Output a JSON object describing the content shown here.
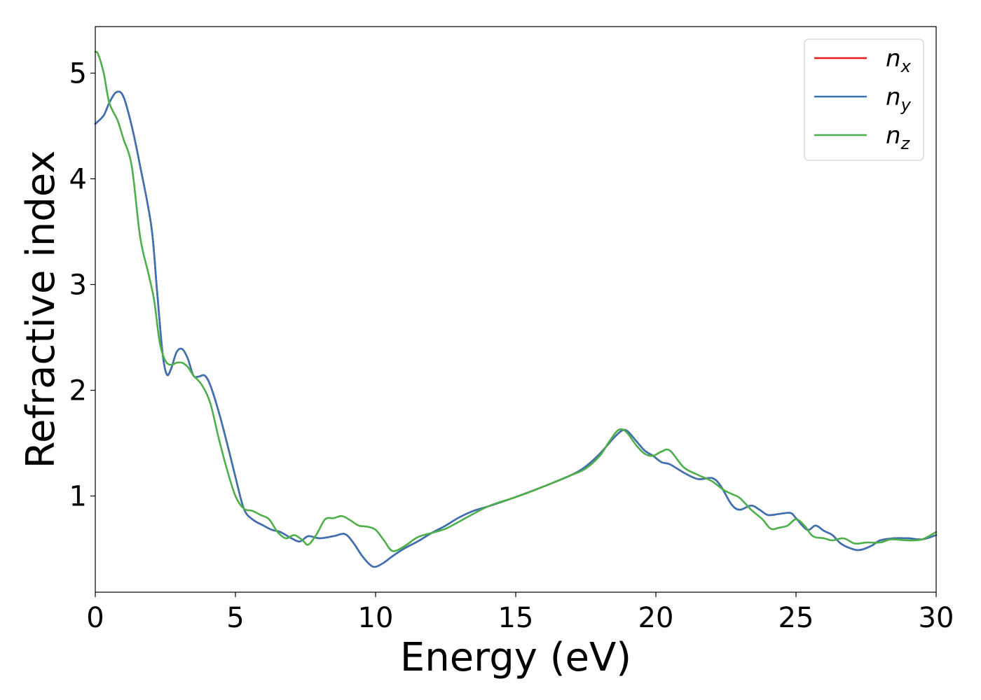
{
  "chart_data": {
    "type": "line",
    "title": "",
    "xlabel": "Energy (eV)",
    "ylabel": "Refractive index",
    "xlim": [
      0,
      30
    ],
    "ylim": [
      0.09,
      5.44
    ],
    "xticks": [
      0,
      5,
      10,
      15,
      20,
      25,
      30
    ],
    "yticks": [
      1,
      2,
      3,
      4,
      5
    ],
    "grid": false,
    "legend_position": "top-right",
    "series": [
      {
        "name": "n_x",
        "label_base": "n",
        "label_sub": "x",
        "color": "#e41a1c",
        "x": [
          0,
          0.3,
          0.5,
          0.75,
          1.0,
          1.3,
          1.6,
          2.0,
          2.2,
          2.4,
          2.55,
          2.7,
          2.9,
          3.1,
          3.3,
          3.5,
          3.7,
          3.9,
          4.1,
          4.4,
          4.7,
          5.0,
          5.3,
          5.6,
          6.0,
          6.3,
          6.6,
          7.0,
          7.3,
          7.6,
          8.0,
          8.5,
          8.9,
          9.2,
          9.5,
          9.8,
          10.0,
          10.3,
          10.6,
          11.0,
          11.5,
          12.0,
          12.5,
          13.0,
          13.5,
          14.0,
          15.0,
          16.0,
          17.0,
          17.5,
          18.0,
          18.5,
          18.8,
          19.0,
          19.3,
          19.6,
          19.9,
          20.2,
          20.5,
          21.0,
          21.5,
          22.0,
          22.3,
          22.7,
          23.0,
          23.4,
          23.7,
          24.0,
          24.4,
          24.8,
          25.0,
          25.4,
          25.7,
          26.0,
          26.3,
          26.6,
          27.0,
          27.3,
          27.7,
          28.0,
          28.5,
          29.0,
          29.5,
          30.0
        ],
        "y": [
          4.52,
          4.6,
          4.72,
          4.82,
          4.78,
          4.5,
          4.12,
          3.55,
          2.95,
          2.35,
          2.15,
          2.2,
          2.36,
          2.39,
          2.3,
          2.14,
          2.13,
          2.14,
          2.05,
          1.8,
          1.5,
          1.18,
          0.88,
          0.78,
          0.72,
          0.68,
          0.66,
          0.6,
          0.57,
          0.62,
          0.6,
          0.62,
          0.64,
          0.56,
          0.44,
          0.35,
          0.33,
          0.37,
          0.43,
          0.5,
          0.57,
          0.65,
          0.72,
          0.8,
          0.86,
          0.9,
          0.99,
          1.09,
          1.2,
          1.28,
          1.4,
          1.55,
          1.62,
          1.61,
          1.52,
          1.43,
          1.38,
          1.32,
          1.3,
          1.22,
          1.16,
          1.17,
          1.1,
          0.92,
          0.87,
          0.91,
          0.87,
          0.82,
          0.83,
          0.84,
          0.79,
          0.68,
          0.72,
          0.67,
          0.63,
          0.55,
          0.5,
          0.49,
          0.53,
          0.58,
          0.6,
          0.6,
          0.59,
          0.63
        ]
      },
      {
        "name": "n_y",
        "label_base": "n",
        "label_sub": "y",
        "color": "#3a73b4",
        "x": [
          0,
          0.3,
          0.5,
          0.75,
          1.0,
          1.3,
          1.6,
          2.0,
          2.2,
          2.4,
          2.55,
          2.7,
          2.9,
          3.1,
          3.3,
          3.5,
          3.7,
          3.9,
          4.1,
          4.4,
          4.7,
          5.0,
          5.3,
          5.6,
          6.0,
          6.3,
          6.6,
          7.0,
          7.3,
          7.6,
          8.0,
          8.5,
          8.9,
          9.2,
          9.5,
          9.8,
          10.0,
          10.3,
          10.6,
          11.0,
          11.5,
          12.0,
          12.5,
          13.0,
          13.5,
          14.0,
          15.0,
          16.0,
          17.0,
          17.5,
          18.0,
          18.5,
          18.8,
          19.0,
          19.3,
          19.6,
          19.9,
          20.2,
          20.5,
          21.0,
          21.5,
          22.0,
          22.3,
          22.7,
          23.0,
          23.4,
          23.7,
          24.0,
          24.4,
          24.8,
          25.0,
          25.4,
          25.7,
          26.0,
          26.3,
          26.6,
          27.0,
          27.3,
          27.7,
          28.0,
          28.5,
          29.0,
          29.5,
          30.0
        ],
        "y": [
          4.52,
          4.6,
          4.72,
          4.82,
          4.78,
          4.5,
          4.12,
          3.55,
          2.95,
          2.35,
          2.15,
          2.2,
          2.36,
          2.39,
          2.3,
          2.14,
          2.13,
          2.14,
          2.05,
          1.8,
          1.5,
          1.18,
          0.88,
          0.78,
          0.72,
          0.68,
          0.66,
          0.6,
          0.57,
          0.62,
          0.6,
          0.62,
          0.64,
          0.56,
          0.44,
          0.35,
          0.33,
          0.37,
          0.43,
          0.5,
          0.57,
          0.65,
          0.72,
          0.8,
          0.86,
          0.9,
          0.99,
          1.09,
          1.2,
          1.28,
          1.4,
          1.55,
          1.62,
          1.61,
          1.52,
          1.43,
          1.38,
          1.32,
          1.3,
          1.22,
          1.16,
          1.17,
          1.1,
          0.92,
          0.87,
          0.91,
          0.87,
          0.82,
          0.83,
          0.84,
          0.79,
          0.68,
          0.72,
          0.67,
          0.63,
          0.55,
          0.5,
          0.49,
          0.53,
          0.58,
          0.6,
          0.6,
          0.59,
          0.63
        ]
      },
      {
        "name": "n_z",
        "label_base": "n",
        "label_sub": "z",
        "color": "#4daf4a",
        "x": [
          0,
          0.1,
          0.3,
          0.5,
          0.8,
          1.0,
          1.3,
          1.6,
          1.9,
          2.1,
          2.3,
          2.5,
          2.7,
          2.9,
          3.1,
          3.3,
          3.5,
          3.8,
          4.1,
          4.4,
          4.7,
          5.0,
          5.3,
          5.6,
          5.9,
          6.2,
          6.5,
          6.8,
          7.1,
          7.4,
          7.6,
          7.9,
          8.2,
          8.5,
          8.8,
          9.1,
          9.4,
          9.7,
          10.0,
          10.3,
          10.6,
          11.0,
          11.5,
          12.0,
          12.5,
          13.0,
          14.0,
          15.0,
          16.0,
          17.0,
          17.5,
          18.0,
          18.3,
          18.6,
          18.8,
          19.0,
          19.3,
          19.6,
          19.9,
          20.2,
          20.5,
          21.0,
          21.5,
          22.0,
          22.4,
          22.7,
          23.0,
          23.4,
          23.8,
          24.1,
          24.4,
          24.7,
          25.0,
          25.3,
          25.6,
          26.0,
          26.3,
          26.7,
          27.1,
          27.5,
          28.0,
          28.4,
          29.0,
          29.5,
          30.0
        ],
        "y": [
          5.2,
          5.18,
          5.0,
          4.72,
          4.55,
          4.38,
          4.12,
          3.45,
          3.1,
          2.85,
          2.45,
          2.28,
          2.24,
          2.26,
          2.26,
          2.22,
          2.14,
          2.05,
          1.88,
          1.55,
          1.25,
          1.0,
          0.88,
          0.86,
          0.82,
          0.78,
          0.66,
          0.6,
          0.63,
          0.58,
          0.54,
          0.64,
          0.78,
          0.79,
          0.81,
          0.77,
          0.72,
          0.71,
          0.68,
          0.58,
          0.48,
          0.52,
          0.61,
          0.65,
          0.69,
          0.76,
          0.9,
          0.99,
          1.09,
          1.2,
          1.26,
          1.38,
          1.5,
          1.61,
          1.63,
          1.59,
          1.48,
          1.4,
          1.38,
          1.42,
          1.43,
          1.27,
          1.2,
          1.14,
          1.06,
          1.02,
          0.98,
          0.87,
          0.78,
          0.69,
          0.7,
          0.72,
          0.78,
          0.72,
          0.62,
          0.6,
          0.58,
          0.6,
          0.55,
          0.56,
          0.56,
          0.59,
          0.58,
          0.59,
          0.66
        ]
      }
    ]
  }
}
